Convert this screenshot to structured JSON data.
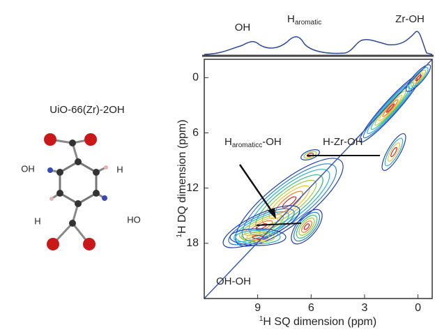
{
  "molecule": {
    "title": "UiO-66(Zr)-2OH",
    "labels": [
      "OH",
      "H",
      "H",
      "HO"
    ]
  },
  "chart_data": {
    "type": "contour",
    "peak_labels": [
      {
        "main": "OH"
      },
      {
        "main": "H",
        "sub": "aromatic"
      },
      {
        "main": "Zr-OH"
      }
    ],
    "annotations": [
      {
        "main": "H",
        "sub": "aromaticc",
        "rest": "-OH"
      },
      {
        "main": "H-Zr-OH"
      },
      {
        "main": "OH-OH"
      }
    ],
    "xlabel": {
      "sup": "1",
      "text": "H SQ dimension (ppm)"
    },
    "ylabel": {
      "sup": "1",
      "text": "H DQ dimension (ppm)"
    },
    "xlim": [
      12,
      -0.8
    ],
    "xticks": [
      9,
      6,
      3,
      0
    ],
    "ylim": [
      -2,
      24
    ],
    "yticks": [
      0,
      6,
      12,
      18
    ]
  }
}
